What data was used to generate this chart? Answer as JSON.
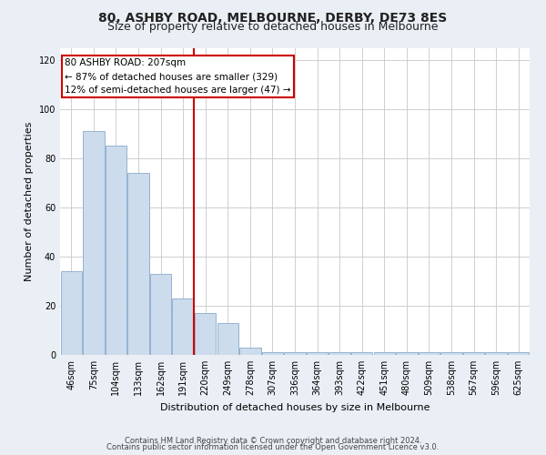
{
  "title": "80, ASHBY ROAD, MELBOURNE, DERBY, DE73 8ES",
  "subtitle": "Size of property relative to detached houses in Melbourne",
  "xlabel": "Distribution of detached houses by size in Melbourne",
  "ylabel": "Number of detached properties",
  "categories": [
    "46sqm",
    "75sqm",
    "104sqm",
    "133sqm",
    "162sqm",
    "191sqm",
    "220sqm",
    "249sqm",
    "278sqm",
    "307sqm",
    "336sqm",
    "364sqm",
    "393sqm",
    "422sqm",
    "451sqm",
    "480sqm",
    "509sqm",
    "538sqm",
    "567sqm",
    "596sqm",
    "625sqm"
  ],
  "bar_values": [
    34,
    91,
    85,
    74,
    33,
    23,
    17,
    13,
    3,
    1,
    1,
    1,
    1,
    1,
    1,
    1,
    1,
    1,
    1,
    1,
    1
  ],
  "bar_color": "#ccdcec",
  "bar_edge_color": "#88aacc",
  "line_color": "#cc0000",
  "red_line_x": 5.5,
  "annotation_box_text": "80 ASHBY ROAD: 207sqm\n← 87% of detached houses are smaller (329)\n12% of semi-detached houses are larger (47) →",
  "ylim": [
    0,
    125
  ],
  "yticks": [
    0,
    20,
    40,
    60,
    80,
    100,
    120
  ],
  "footnote1": "Contains HM Land Registry data © Crown copyright and database right 2024.",
  "footnote2": "Contains public sector information licensed under the Open Government Licence v3.0.",
  "bg_color": "#eaeff5",
  "plot_bg_color": "#ffffff",
  "grid_color": "#c8c8c8",
  "title_fontsize": 10,
  "subtitle_fontsize": 9,
  "ylabel_fontsize": 8,
  "xlabel_fontsize": 8,
  "tick_fontsize": 7,
  "annot_fontsize": 7.5,
  "footnote_fontsize": 6
}
